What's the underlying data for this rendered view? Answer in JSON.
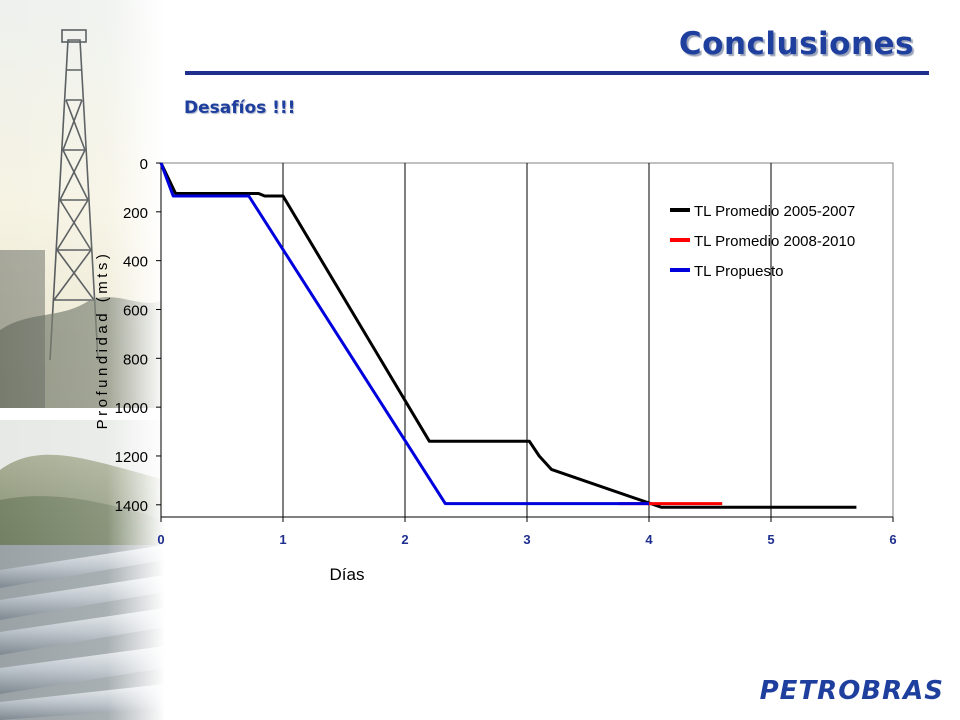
{
  "header": {
    "title": "Conclusiones",
    "subtitle": "Desafíos !!!"
  },
  "footer": {
    "brand": "PETROBRAS"
  },
  "chart_data": {
    "type": "line",
    "title": "",
    "xlabel": "Días",
    "ylabel": "Profundidad (mts)",
    "xlim": [
      0,
      6
    ],
    "ylim": [
      0,
      1450
    ],
    "y_inverted": true,
    "x_ticks": [
      0,
      1,
      2,
      3,
      4,
      5,
      6
    ],
    "y_ticks": [
      0,
      200,
      400,
      600,
      800,
      1000,
      1200,
      1400
    ],
    "vertical_gridlines": true,
    "horizontal_gridlines": false,
    "legend_position": "top-right",
    "series": [
      {
        "name": "TL Promedio 2005-2007",
        "color": "#000000",
        "points": [
          [
            0,
            0
          ],
          [
            0.12,
            125
          ],
          [
            0.8,
            125
          ],
          [
            0.85,
            135
          ],
          [
            1.0,
            135
          ],
          [
            2.2,
            1140
          ],
          [
            3.02,
            1140
          ],
          [
            3.1,
            1200
          ],
          [
            3.2,
            1255
          ],
          [
            4.1,
            1410
          ],
          [
            5.7,
            1410
          ]
        ]
      },
      {
        "name": "TL Promedio 2008-2010",
        "color": "#ff0000",
        "points": [
          [
            3.75,
            1395
          ],
          [
            4.0,
            1395
          ],
          [
            4.6,
            1395
          ]
        ]
      },
      {
        "name": "TL Propuesto",
        "color": "#0000dd",
        "points": [
          [
            0,
            0
          ],
          [
            0.1,
            135
          ],
          [
            0.72,
            135
          ],
          [
            2.33,
            1395
          ],
          [
            4.0,
            1395
          ]
        ]
      }
    ]
  }
}
